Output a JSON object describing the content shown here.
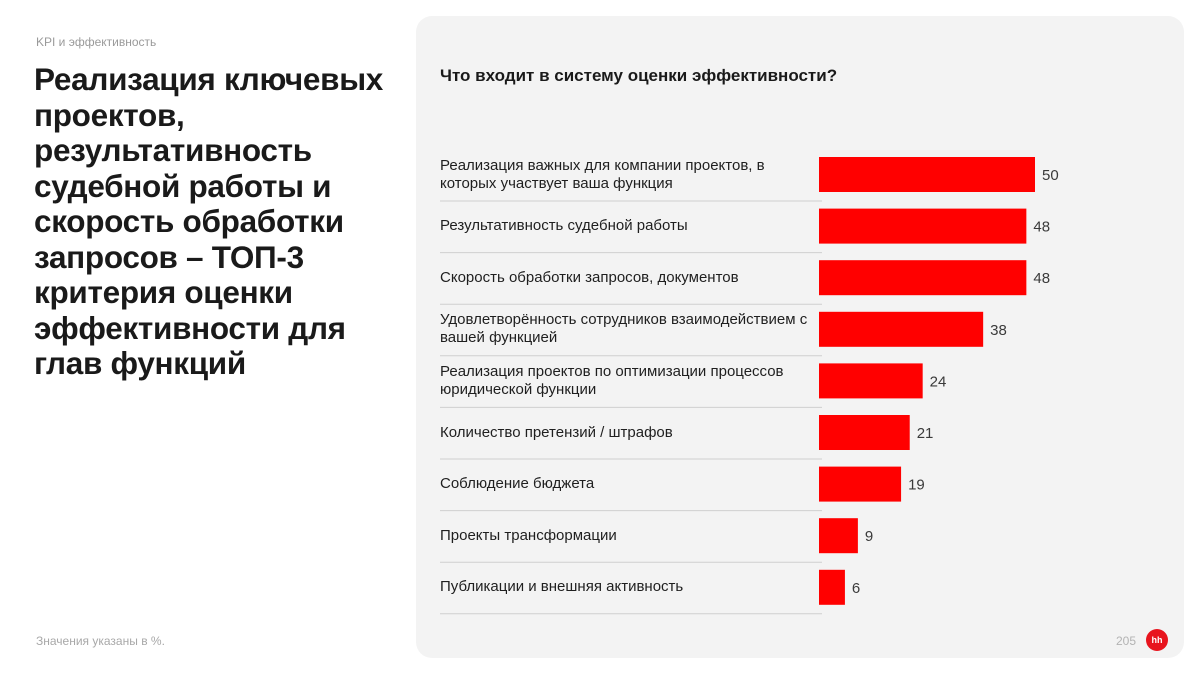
{
  "section_label": "KPI и эффективность",
  "headline": "Реализация ключевых проектов, результативность судебной работы и скорость обработки запросов – ТОП-3 критерия оценки эффективности для глав функций",
  "footnote": "Значения указаны в %.",
  "page_number": "205",
  "logo_text": "hh",
  "colors": {
    "bar": "#ff0000",
    "accent": "#e8141d",
    "panel_bg": "#f3f3f3",
    "divider": "#cfcfcf"
  },
  "chart_data": {
    "type": "bar",
    "orientation": "horizontal",
    "title": "Что входит в систему оценки эффективности?",
    "categories": [
      "Реализация важных для компании проектов, в которых участвует ваша функция",
      "Результативность судебной работы",
      "Скорость обработки запросов, документов",
      "Удовлетворённость сотрудников взаимодействием с вашей функцией",
      "Реализация проектов по оптимизации процессов юридической функции",
      "Количество претензий / штрафов",
      "Соблюдение бюджета",
      "Проекты трансформации",
      "Публикации и внешняя активность"
    ],
    "values": [
      50,
      48,
      48,
      38,
      24,
      21,
      19,
      9,
      6
    ],
    "xlim": [
      0,
      50
    ],
    "unit": "%",
    "grid": false,
    "legend": "none"
  }
}
